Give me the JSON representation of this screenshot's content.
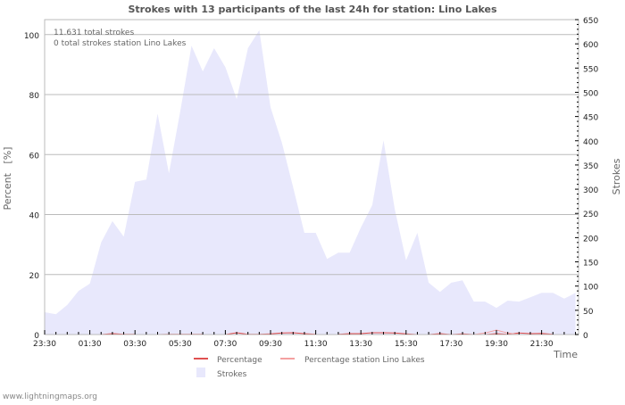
{
  "chart_data": {
    "type": "area",
    "title": "Strokes with 13 participants of the last 24h for station: Lino Lakes",
    "annotations": [
      "11.631 total strokes",
      "0 total strokes station Lino Lakes"
    ],
    "xlabel": "Time",
    "ylabel_left": "Percent   [%]",
    "ylabel_right": "Strokes",
    "ylim_left": [
      0,
      105
    ],
    "ylim_right": [
      0,
      650
    ],
    "yticks_left": [
      0,
      20,
      40,
      60,
      80,
      100
    ],
    "yticks_right": [
      0,
      50,
      100,
      150,
      200,
      250,
      300,
      350,
      400,
      450,
      500,
      550,
      600,
      650
    ],
    "xtick_labels": [
      "23:30",
      "01:30",
      "03:30",
      "05:30",
      "07:30",
      "09:30",
      "11:30",
      "13:30",
      "15:30",
      "17:30",
      "19:30",
      "21:30"
    ],
    "x_interval_minutes": 30,
    "grid": true,
    "legend_position": "bottom-center",
    "series": [
      {
        "name": "Strokes",
        "axis": "right",
        "type": "area",
        "color": "#e8e8fc",
        "values": [
          46,
          42,
          61,
          90,
          105,
          190,
          234,
          202,
          315,
          320,
          456,
          333,
          460,
          596,
          543,
          591,
          552,
          486,
          591,
          628,
          469,
          396,
          304,
          210,
          210,
          156,
          169,
          169,
          221,
          267,
          401,
          258,
          153,
          210,
          107,
          88,
          107,
          112,
          68,
          68,
          55,
          70,
          68,
          77,
          86,
          86,
          74,
          86
        ]
      },
      {
        "name": "Percentage",
        "axis": "left",
        "type": "line",
        "color": "#e05050",
        "values": [
          null,
          null,
          null,
          null,
          null,
          0,
          0.3,
          0.1,
          0.1,
          null,
          0,
          0.1,
          0.1,
          0.1,
          0.1,
          null,
          0,
          0.6,
          0.1,
          0.1,
          0.2,
          0.5,
          0.6,
          0.3,
          0.1,
          null,
          0.1,
          0.3,
          0.3,
          0.6,
          0.6,
          0.5,
          0.2,
          0,
          0,
          0.3,
          0,
          0.2,
          0,
          0,
          0.3,
          0.1,
          0.5,
          0.3,
          0.4,
          0.1,
          null,
          null
        ]
      },
      {
        "name": "Percentage station Lino Lakes",
        "axis": "left",
        "type": "line",
        "color": "#f4a0a0",
        "values": [
          null,
          null,
          null,
          null,
          null,
          null,
          null,
          null,
          null,
          null,
          null,
          null,
          null,
          null,
          null,
          null,
          null,
          null,
          null,
          null,
          null,
          null,
          null,
          null,
          null,
          null,
          null,
          null,
          null,
          null,
          null,
          null,
          null,
          null,
          null,
          null,
          null,
          null,
          0,
          0.5,
          1.5,
          0.5,
          0,
          null,
          null,
          null,
          null,
          null
        ]
      }
    ]
  },
  "footer": {
    "credit": "www.lightningmaps.org"
  }
}
